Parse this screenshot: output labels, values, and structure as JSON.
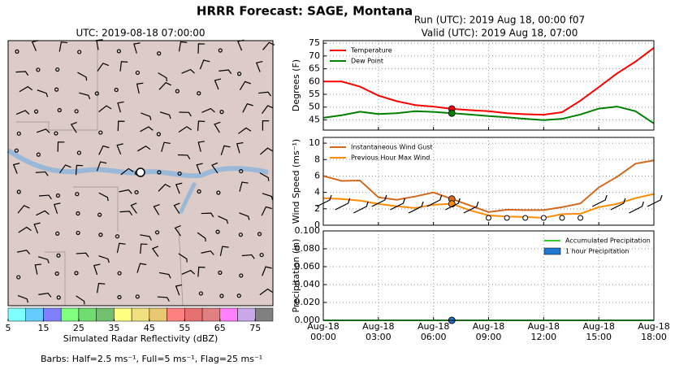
{
  "title": "HRRR Forecast: SAGE, Montana",
  "footnote": "Barbs: Half=2.5 ms⁻¹, Full=5 ms⁻¹, Flag=25 ms⁻¹",
  "chart_data": [
    {
      "type": "line",
      "title": "Run (UTC): 2019 Aug 18, 00:00 f07",
      "subtitle": "Valid (UTC): 2019 Aug 18, 07:00",
      "ylabel": "Degrees (F)",
      "ylim": [
        41,
        76
      ],
      "yticks": [
        45,
        50,
        55,
        60,
        65,
        70,
        75
      ],
      "grid": true,
      "legend": "upper left",
      "highlight": 7,
      "series": [
        {
          "name": "Temperature",
          "color": "#ff0000",
          "values": [
            60,
            60,
            58,
            54.5,
            52.3,
            50.8,
            50.2,
            49.3,
            48.8,
            48.4,
            47.6,
            47.2,
            47,
            48,
            52.5,
            57.8,
            63.2,
            67.8,
            73.2
          ]
        },
        {
          "name": "Dew Point",
          "color": "#008000",
          "values": [
            45.8,
            46.8,
            48.2,
            47.3,
            47.6,
            48.4,
            48.1,
            47.6,
            47.1,
            46.5,
            46,
            45.4,
            44.9,
            45.4,
            47.1,
            49.4,
            50.2,
            48.4,
            43.6
          ]
        }
      ]
    },
    {
      "type": "line",
      "ylabel": "Wind Speed (ms⁻¹)",
      "ylim": [
        0,
        10.7
      ],
      "yticks": [
        0,
        2,
        4,
        6,
        8,
        10
      ],
      "grid": true,
      "legend": "upper left",
      "highlight": 7,
      "series": [
        {
          "name": "Instantaneous Wind Gust",
          "color": "#d2691e",
          "values": [
            6.0,
            5.4,
            5.45,
            3.4,
            3.1,
            3.5,
            4.0,
            3.2,
            2.4,
            1.6,
            1.9,
            1.85,
            1.85,
            2.2,
            2.65,
            4.6,
            5.9,
            7.5,
            7.9
          ]
        },
        {
          "name": "Previous Hour Max Wind",
          "color": "#ff8c00",
          "values": [
            3.3,
            3.2,
            3.0,
            2.6,
            2.3,
            2.1,
            2.5,
            2.6,
            1.8,
            1.2,
            1.05,
            1.0,
            0.9,
            1.35,
            1.4,
            2.2,
            2.6,
            3.3,
            3.8
          ]
        }
      ]
    },
    {
      "type": "line",
      "ylabel": "Precipitation (in)",
      "ylim": [
        0,
        0.1
      ],
      "yticks": [
        {
          "value": 0,
          "label": "0.000"
        },
        {
          "value": 0.02,
          "label": "0.020"
        },
        {
          "value": 0.04,
          "label": "0.040"
        },
        {
          "value": 0.06,
          "label": "0.060"
        },
        {
          "value": 0.08,
          "label": "0.080"
        },
        {
          "value": 0.1,
          "label": "0.100"
        }
      ],
      "grid": true,
      "legend": "upper right",
      "highlight": 7,
      "categories": [
        "Aug-18 00:00",
        null,
        null,
        "Aug-18 03:00",
        null,
        null,
        "Aug-18 06:00",
        null,
        null,
        "Aug-18 09:00",
        null,
        null,
        "Aug-18 12:00",
        null,
        null,
        "Aug-18 15:00",
        null,
        null,
        "Aug-18 18:00"
      ],
      "series": [
        {
          "name": "Accumulated Precipitation",
          "color": "#33cc33",
          "values": [
            0,
            0,
            0,
            0,
            0,
            0,
            0,
            0,
            0,
            0,
            0,
            0,
            0,
            0,
            0,
            0,
            0,
            0,
            0
          ]
        },
        {
          "name": "1 hour Precipitation",
          "type": "bar",
          "color": "#1e78d0",
          "values": [
            0,
            0,
            0,
            0,
            0,
            0,
            0,
            0,
            0,
            0,
            0,
            0,
            0,
            0,
            0,
            0,
            0,
            0,
            0
          ]
        }
      ]
    },
    {
      "type": "map",
      "title": "UTC: 2019-08-18 07:00:00",
      "colorbar": {
        "label": "Simulated Radar Reflectivity (dBZ)",
        "clim": [
          5,
          80
        ],
        "ticks": [
          5,
          15,
          25,
          35,
          45,
          55,
          65,
          75
        ],
        "colors": [
          "#80ffff",
          "#66ccff",
          "#8080ff",
          "#80ff80",
          "#70dd70",
          "#70c070",
          "#ffff80",
          "#f0e080",
          "#e8c870",
          "#ff8080",
          "#e87070",
          "#e08080",
          "#ff80ff",
          "#c8a8e8",
          "#808080"
        ]
      }
    }
  ]
}
